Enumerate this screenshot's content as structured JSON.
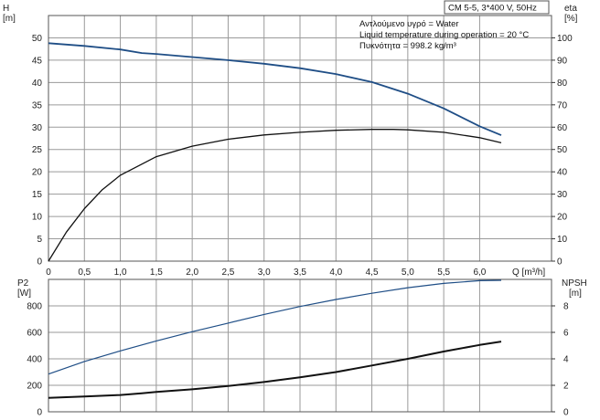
{
  "header": {
    "title": "CM 5-5, 3*400 V, 50Hz",
    "notes": [
      "Αντλούμενο υγρό = Water",
      "Liquid temperature during operation = 20 °C",
      "Πυκνότητα = 998.2 kg/m³"
    ]
  },
  "colors": {
    "head": "#1f4e86",
    "eta": "#111111",
    "p2": "#1f4e86",
    "npsh": "#111111",
    "grid": "#9a9a9a"
  },
  "chart_data": [
    {
      "type": "line",
      "panel": "upper",
      "xlabel": "Q [m³/h]",
      "ylabel_left": [
        "H",
        "[m]"
      ],
      "ylabel_right": [
        "eta",
        "[%]"
      ],
      "xlim": [
        0,
        7.0
      ],
      "ylim_left": [
        0,
        55
      ],
      "ylim_right": [
        0,
        110
      ],
      "x_ticks": [
        "0",
        "0,5",
        "1,0",
        "1,5",
        "2,0",
        "2,5",
        "3,0",
        "3,5",
        "4,0",
        "4,5",
        "5,0",
        "5,5",
        "6,0"
      ],
      "y_ticks_left": [
        "0",
        "5",
        "10",
        "15",
        "20",
        "25",
        "30",
        "35",
        "40",
        "45",
        "50"
      ],
      "y_ticks_right": [
        "0",
        "10",
        "20",
        "30",
        "40",
        "50",
        "60",
        "70",
        "80",
        "90",
        "100"
      ],
      "grid": true,
      "series": [
        {
          "axis": "left",
          "x": [
            0,
            0.5,
            1.0,
            1.3,
            1.5,
            2.0,
            2.5,
            3.0,
            3.5,
            4.0,
            4.5,
            5.0,
            5.5,
            6.0,
            6.3
          ],
          "y": [
            48.8,
            48.2,
            47.4,
            46.6,
            46.4,
            45.7,
            45.0,
            44.2,
            43.2,
            41.9,
            40.1,
            37.5,
            34.2,
            30.2,
            28.2
          ]
        },
        {
          "axis": "right",
          "x": [
            0,
            0.25,
            0.5,
            0.75,
            1.0,
            1.5,
            2.0,
            2.5,
            3.0,
            3.5,
            4.0,
            4.5,
            4.8,
            5.0,
            5.5,
            6.0,
            6.3
          ],
          "y": [
            0,
            13,
            23.5,
            32,
            38.5,
            46.8,
            51.5,
            54.6,
            56.5,
            57.7,
            58.6,
            59.0,
            59.0,
            58.8,
            57.7,
            55.3,
            53.0
          ]
        }
      ]
    },
    {
      "type": "line",
      "panel": "lower",
      "ylabel_left": [
        "P2",
        "[W]"
      ],
      "ylabel_right": [
        "NPSH",
        "[m]"
      ],
      "xlim": [
        0,
        7.0
      ],
      "ylim_left": [
        0,
        1000
      ],
      "ylim_right": [
        0,
        10
      ],
      "y_ticks_left": [
        "0",
        "200",
        "400",
        "600",
        "800"
      ],
      "y_ticks_right": [
        "0",
        "2",
        "4",
        "6",
        "8"
      ],
      "grid": true,
      "series": [
        {
          "axis": "left",
          "x": [
            0,
            0.5,
            1.0,
            1.5,
            2.0,
            2.5,
            3.0,
            3.5,
            4.0,
            4.5,
            5.0,
            5.5,
            6.0,
            6.3
          ],
          "y": [
            285,
            380,
            460,
            535,
            605,
            670,
            735,
            795,
            848,
            895,
            937,
            970,
            990,
            993
          ]
        },
        {
          "axis": "right",
          "x": [
            0,
            0.5,
            1.0,
            1.3,
            1.5,
            2.0,
            2.5,
            3.0,
            3.5,
            4.0,
            4.5,
            5.0,
            5.5,
            6.0,
            6.3
          ],
          "y": [
            1.05,
            1.15,
            1.27,
            1.4,
            1.5,
            1.7,
            1.95,
            2.25,
            2.6,
            3.0,
            3.5,
            4.0,
            4.55,
            5.05,
            5.3
          ]
        }
      ]
    }
  ]
}
